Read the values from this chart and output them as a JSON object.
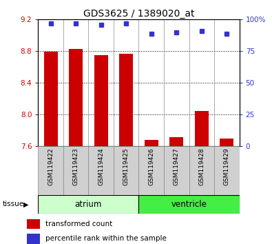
{
  "title": "GDS3625 / 1389020_at",
  "samples": [
    "GSM119422",
    "GSM119423",
    "GSM119424",
    "GSM119425",
    "GSM119426",
    "GSM119427",
    "GSM119428",
    "GSM119429"
  ],
  "bar_values": [
    8.79,
    8.83,
    8.75,
    8.77,
    7.68,
    7.72,
    8.05,
    7.7
  ],
  "percentile_values": [
    97,
    97,
    96,
    97,
    89,
    90,
    91,
    89
  ],
  "ylim_left": [
    7.6,
    9.2
  ],
  "ylim_right": [
    0,
    100
  ],
  "yticks_left": [
    7.6,
    8.0,
    8.4,
    8.8,
    9.2
  ],
  "yticks_right": [
    0,
    25,
    50,
    75,
    100
  ],
  "grid_values": [
    8.0,
    8.4,
    8.8
  ],
  "bar_color": "#cc0000",
  "dot_color": "#3333cc",
  "tissue_groups": [
    {
      "label": "atrium",
      "start": 0,
      "end": 4,
      "color": "#ccffcc"
    },
    {
      "label": "ventricle",
      "start": 4,
      "end": 8,
      "color": "#44ee44"
    }
  ],
  "legend_items": [
    {
      "label": "transformed count",
      "color": "#cc0000"
    },
    {
      "label": "percentile rank within the sample",
      "color": "#3333cc"
    }
  ],
  "tissue_label": "tissue",
  "bar_width": 0.55,
  "tick_label_color_left": "#cc0000",
  "tick_label_color_right": "#3333cc",
  "sample_box_color": "#d0d0d0",
  "divider_color": "#888888"
}
